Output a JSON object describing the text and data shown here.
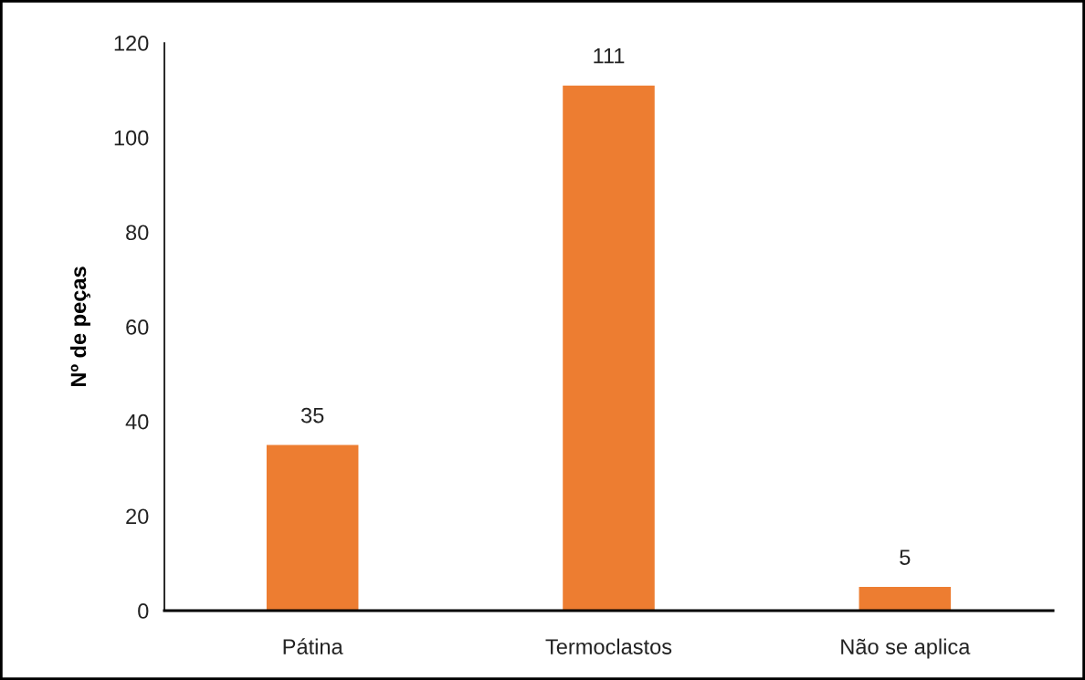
{
  "chart_data": {
    "type": "bar",
    "ylabel": "Nº de peças",
    "categories": [
      "Pátina",
      "Termoclastos",
      "Não se aplica"
    ],
    "values": [
      35,
      111,
      5
    ],
    "color": "#ed7d31",
    "ylim": [
      0,
      120
    ],
    "yticks": [
      0,
      20,
      40,
      60,
      80,
      100,
      120
    ],
    "grid": false,
    "data_labels": true
  }
}
